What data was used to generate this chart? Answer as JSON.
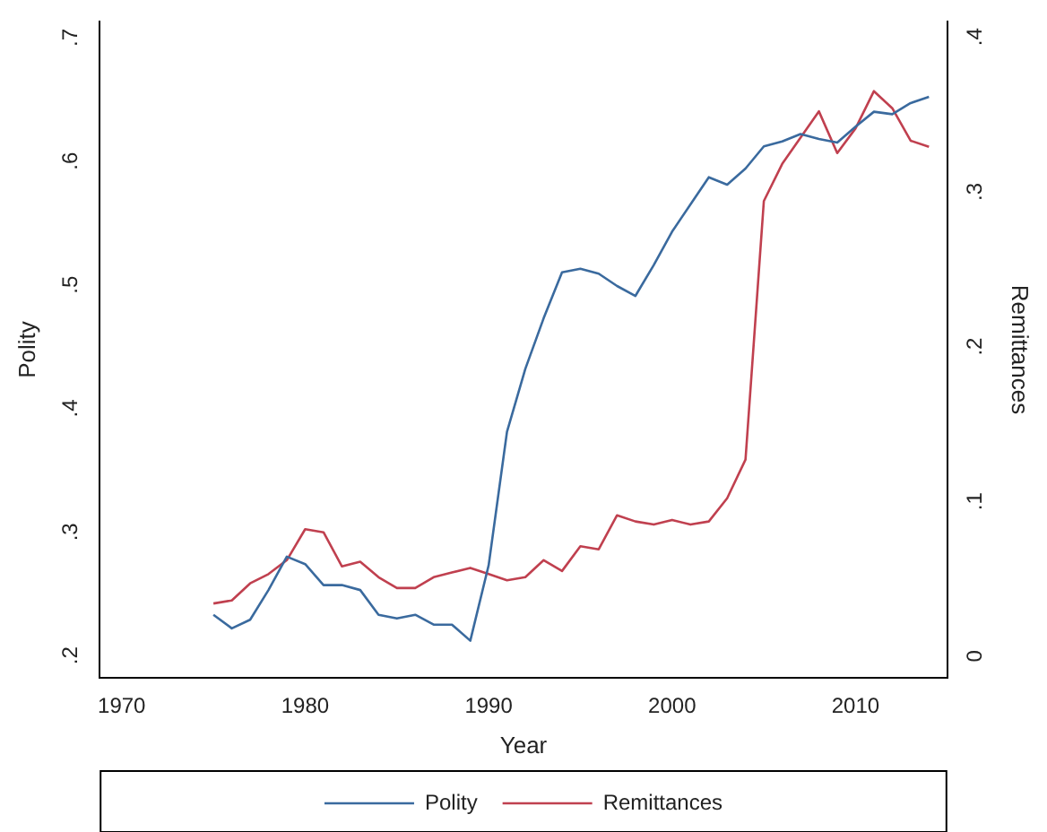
{
  "chart_data": {
    "type": "line",
    "xlabel": "Year",
    "ylabel": "Polity",
    "y2label": "Remittances",
    "x": [
      1975,
      1976,
      1977,
      1978,
      1979,
      1980,
      1981,
      1982,
      1983,
      1984,
      1985,
      1986,
      1987,
      1988,
      1989,
      1990,
      1991,
      1992,
      1993,
      1994,
      1995,
      1996,
      1997,
      1998,
      1999,
      2000,
      2001,
      2002,
      2003,
      2004,
      2005,
      2006,
      2007,
      2008,
      2009,
      2010,
      2011,
      2012,
      2013,
      2014
    ],
    "series": [
      {
        "name": "Polity",
        "color": "#3a6a9e",
        "values": [
          0.233,
          0.222,
          0.229,
          0.253,
          0.28,
          0.274,
          0.257,
          0.257,
          0.253,
          0.233,
          0.23,
          0.233,
          0.225,
          0.225,
          0.212,
          0.273,
          0.381,
          0.432,
          0.473,
          0.51,
          0.513,
          0.509,
          0.499,
          0.491,
          0.516,
          0.543,
          0.565,
          0.587,
          0.581,
          0.594,
          0.612,
          0.616,
          0.622,
          0.618,
          0.615,
          0.628,
          0.64,
          0.638,
          0.647,
          0.652
        ]
      },
      {
        "name": "Remittances",
        "color": "#c0404f",
        "axis": "y2",
        "values": [
          0.034,
          0.036,
          0.047,
          0.053,
          0.062,
          0.082,
          0.08,
          0.058,
          0.061,
          0.051,
          0.044,
          0.044,
          0.051,
          0.054,
          0.057,
          0.053,
          0.049,
          0.051,
          0.062,
          0.055,
          0.071,
          0.069,
          0.091,
          0.087,
          0.085,
          0.088,
          0.085,
          0.087,
          0.102,
          0.127,
          0.294,
          0.318,
          0.335,
          0.352,
          0.325,
          0.341,
          0.365,
          0.354,
          0.333,
          0.329
        ]
      }
    ],
    "xlim": [
      1968.8,
      2015
    ],
    "xticks": [
      1970,
      1980,
      1990,
      2000,
      2010
    ],
    "ylim": [
      0.182,
      0.713
    ],
    "yticks": [
      {
        "value": 0.2,
        "label": ".2"
      },
      {
        "value": 0.3,
        "label": ".3"
      },
      {
        "value": 0.4,
        "label": ".4"
      },
      {
        "value": 0.5,
        "label": ".5"
      },
      {
        "value": 0.6,
        "label": ".6"
      },
      {
        "value": 0.7,
        "label": ".7"
      }
    ],
    "y2lim": [
      -0.014,
      0.41
    ],
    "y2ticks": [
      0,
      {
        "value": 0.1,
        "label": ".1"
      },
      {
        "value": 0.2,
        "label": ".2"
      },
      {
        "value": 0.3,
        "label": ".3"
      },
      {
        "value": 0.4,
        "label": ".4"
      }
    ],
    "grid": false,
    "legend": "bottom",
    "marker": "none",
    "line_style": "solid"
  }
}
